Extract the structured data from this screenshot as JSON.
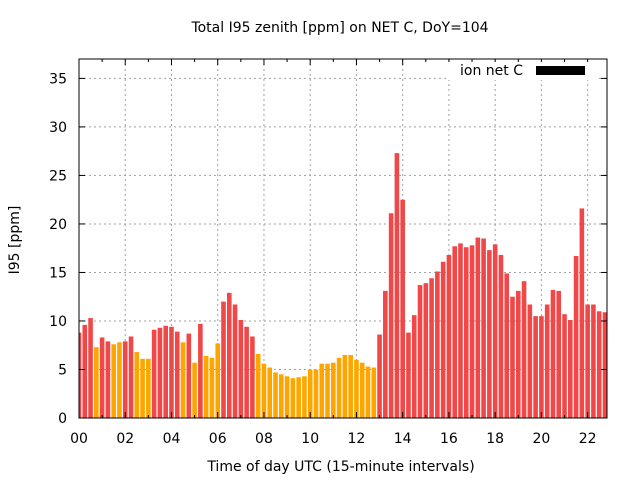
{
  "chart_data": {
    "type": "bar",
    "title": "Total I95 zenith [ppm] on NET C, DoY=104",
    "xlabel": "Time of day UTC (15-minute intervals)",
    "ylabel": "I95 [ppm]",
    "ylim": [
      0,
      37
    ],
    "xlim_bars": [
      0,
      91.5
    ],
    "yticks": [
      0,
      5,
      10,
      15,
      20,
      25,
      30,
      35
    ],
    "xticks": [
      {
        "bar": 0,
        "label": "00"
      },
      {
        "bar": 8,
        "label": "02"
      },
      {
        "bar": 16,
        "label": "04"
      },
      {
        "bar": 24,
        "label": "06"
      },
      {
        "bar": 32,
        "label": "08"
      },
      {
        "bar": 40,
        "label": "10"
      },
      {
        "bar": 48,
        "label": "12"
      },
      {
        "bar": 56,
        "label": "14"
      },
      {
        "bar": 64,
        "label": "16"
      },
      {
        "bar": 72,
        "label": "18"
      },
      {
        "bar": 80,
        "label": "20"
      },
      {
        "bar": 88,
        "label": "22"
      }
    ],
    "grid": true,
    "legend": {
      "label": "ion net C",
      "color": "#000000",
      "position": "top-right"
    },
    "colors": {
      "red": "#f04848",
      "orange": "#ffa500"
    },
    "values": [
      8.8,
      9.6,
      10.3,
      7.3,
      8.3,
      7.9,
      7.6,
      7.8,
      7.9,
      8.4,
      6.8,
      6.1,
      6.1,
      9.1,
      9.3,
      9.5,
      9.4,
      8.9,
      7.8,
      8.7,
      5.7,
      9.7,
      6.4,
      6.2,
      7.7,
      12.0,
      12.9,
      11.7,
      10.1,
      9.4,
      8.4,
      6.6,
      5.6,
      5.2,
      4.7,
      4.5,
      4.3,
      4.1,
      4.2,
      4.3,
      5.0,
      5.0,
      5.6,
      5.6,
      5.7,
      6.2,
      6.5,
      6.5,
      6.0,
      5.7,
      5.3,
      5.2,
      8.6,
      13.1,
      21.1,
      27.3,
      22.5,
      8.8,
      10.6,
      13.7,
      13.9,
      14.4,
      15.1,
      16.1,
      16.8,
      17.7,
      18.0,
      17.6,
      17.8,
      18.6,
      18.5,
      17.3,
      17.9,
      16.8,
      14.9,
      12.5,
      13.1,
      14.1,
      11.7,
      10.5,
      10.5,
      11.7,
      13.2,
      13.1,
      10.7,
      10.1,
      16.7,
      21.6,
      11.7,
      11.7,
      11.0,
      10.9
    ],
    "bar_colors": [
      "red",
      "red",
      "red",
      "orange",
      "red",
      "red",
      "orange",
      "orange",
      "red",
      "red",
      "orange",
      "orange",
      "orange",
      "red",
      "red",
      "red",
      "red",
      "red",
      "orange",
      "red",
      "orange",
      "red",
      "orange",
      "orange",
      "orange",
      "red",
      "red",
      "red",
      "red",
      "red",
      "red",
      "orange",
      "orange",
      "orange",
      "orange",
      "orange",
      "orange",
      "orange",
      "orange",
      "orange",
      "orange",
      "orange",
      "orange",
      "orange",
      "orange",
      "orange",
      "orange",
      "orange",
      "orange",
      "orange",
      "orange",
      "orange",
      "red",
      "red",
      "red",
      "red",
      "red",
      "red",
      "red",
      "red",
      "red",
      "red",
      "red",
      "red",
      "red",
      "red",
      "red",
      "red",
      "red",
      "red",
      "red",
      "red",
      "red",
      "red",
      "red",
      "red",
      "red",
      "red",
      "red",
      "red",
      "red",
      "red",
      "red",
      "red",
      "red",
      "red",
      "red",
      "red",
      "red",
      "red",
      "red",
      "red"
    ]
  }
}
